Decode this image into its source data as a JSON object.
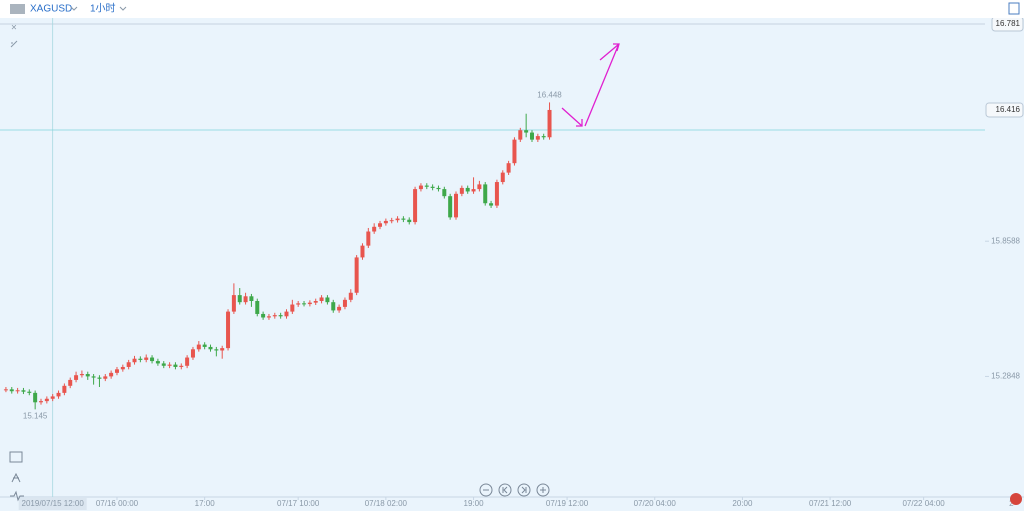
{
  "toolbar": {
    "symbol": "XAGUSD",
    "interval": "1小时"
  },
  "chart_data": {
    "type": "candlestick",
    "up_color": "#e8554e",
    "down_color": "#3ea84a",
    "open": [
      15.228,
      15.23,
      15.222,
      15.226,
      15.22,
      15.215,
      15.175,
      15.18,
      15.19,
      15.2,
      15.215,
      15.245,
      15.27,
      15.29,
      15.295,
      15.285,
      15.28,
      15.275,
      15.285,
      15.3,
      15.315,
      15.325,
      15.345,
      15.36,
      15.355,
      15.365,
      15.35,
      15.34,
      15.33,
      15.335,
      15.325,
      15.33,
      15.365,
      15.4,
      15.42,
      15.41,
      15.4,
      15.395,
      15.405,
      15.56,
      15.63,
      15.6,
      15.625,
      15.605,
      15.55,
      15.535,
      15.54,
      15.545,
      15.54,
      15.56,
      15.59,
      15.595,
      15.592,
      15.598,
      15.605,
      15.62,
      15.6,
      15.565,
      15.58,
      15.61,
      15.64,
      15.79,
      15.84,
      15.9,
      15.92,
      15.935,
      15.945,
      15.948,
      15.955,
      15.95,
      15.94,
      16.08,
      16.095,
      16.09,
      16.085,
      16.08,
      16.05,
      15.96,
      16.06,
      16.085,
      16.07,
      16.08,
      16.1,
      16.02,
      16.01,
      16.11,
      16.15,
      16.19,
      16.29,
      16.33,
      16.32,
      16.29,
      16.305,
      16.3
    ],
    "high": [
      15.24,
      15.24,
      15.236,
      15.236,
      15.23,
      15.225,
      15.19,
      15.2,
      15.21,
      15.225,
      15.255,
      15.28,
      15.305,
      15.31,
      15.305,
      15.295,
      15.29,
      15.295,
      15.31,
      15.325,
      15.335,
      15.355,
      15.372,
      15.37,
      15.378,
      15.375,
      15.36,
      15.35,
      15.345,
      15.345,
      15.34,
      15.375,
      15.41,
      15.435,
      15.43,
      15.42,
      15.41,
      15.415,
      15.57,
      15.68,
      15.66,
      15.64,
      15.635,
      15.615,
      15.56,
      15.55,
      15.555,
      15.555,
      15.57,
      15.61,
      15.605,
      15.605,
      15.608,
      15.615,
      15.63,
      15.63,
      15.61,
      15.59,
      15.62,
      15.655,
      15.8,
      15.85,
      15.915,
      15.935,
      15.945,
      15.955,
      15.958,
      15.965,
      15.965,
      15.96,
      16.09,
      16.105,
      16.105,
      16.1,
      16.095,
      16.09,
      16.06,
      16.07,
      16.095,
      16.095,
      16.13,
      16.115,
      16.11,
      16.03,
      16.12,
      16.16,
      16.2,
      16.3,
      16.34,
      16.4,
      16.33,
      16.315,
      16.315,
      16.448
    ],
    "low": [
      15.218,
      15.212,
      15.212,
      15.21,
      15.205,
      15.145,
      15.165,
      15.17,
      15.18,
      15.19,
      15.205,
      15.235,
      15.26,
      15.28,
      15.27,
      15.25,
      15.24,
      15.265,
      15.275,
      15.29,
      15.305,
      15.315,
      15.335,
      15.345,
      15.345,
      15.34,
      15.33,
      15.32,
      15.32,
      15.315,
      15.315,
      15.32,
      15.355,
      15.39,
      15.4,
      15.39,
      15.37,
      15.36,
      15.395,
      15.55,
      15.59,
      15.59,
      15.58,
      15.54,
      15.525,
      15.525,
      15.53,
      15.53,
      15.53,
      15.55,
      15.58,
      15.582,
      15.582,
      15.588,
      15.595,
      15.59,
      15.555,
      15.555,
      15.57,
      15.6,
      15.63,
      15.78,
      15.83,
      15.89,
      15.91,
      15.925,
      15.935,
      15.938,
      15.94,
      15.93,
      15.93,
      16.07,
      16.08,
      16.075,
      16.07,
      16.04,
      15.95,
      15.95,
      16.05,
      16.06,
      16.06,
      16.07,
      16.01,
      16.0,
      16.0,
      16.1,
      16.14,
      16.18,
      16.28,
      16.3,
      16.28,
      16.28,
      16.29,
      16.29
    ],
    "close": [
      15.23,
      15.222,
      15.226,
      15.22,
      15.215,
      15.175,
      15.18,
      15.19,
      15.2,
      15.215,
      15.245,
      15.27,
      15.29,
      15.295,
      15.285,
      15.28,
      15.275,
      15.285,
      15.3,
      15.315,
      15.325,
      15.345,
      15.36,
      15.355,
      15.365,
      15.35,
      15.34,
      15.33,
      15.335,
      15.325,
      15.33,
      15.365,
      15.4,
      15.42,
      15.41,
      15.4,
      15.395,
      15.405,
      15.56,
      15.63,
      15.6,
      15.625,
      15.605,
      15.55,
      15.535,
      15.54,
      15.545,
      15.54,
      15.56,
      15.59,
      15.595,
      15.592,
      15.598,
      15.605,
      15.62,
      15.6,
      15.565,
      15.58,
      15.61,
      15.64,
      15.79,
      15.84,
      15.9,
      15.92,
      15.935,
      15.945,
      15.948,
      15.955,
      15.95,
      15.94,
      16.08,
      16.095,
      16.09,
      16.085,
      16.08,
      16.05,
      15.96,
      16.06,
      16.085,
      16.07,
      16.08,
      16.1,
      16.02,
      16.01,
      16.11,
      16.15,
      16.19,
      16.29,
      16.33,
      16.32,
      16.29,
      16.305,
      16.3,
      16.416
    ],
    "ylim": [
      14.773,
      16.87
    ],
    "yticks": [
      15.2848,
      15.8588
    ],
    "price_line": 16.781,
    "last_price": 16.416,
    "xlim": [
      -0.5,
      167.5
    ],
    "xticks": [
      {
        "value": 19,
        "label": "07/16 00:00"
      },
      {
        "value": 34,
        "label": "17:00"
      },
      {
        "value": 50,
        "label": "07/17 10:00"
      },
      {
        "value": 65,
        "label": "07/18 02:00"
      },
      {
        "value": 80,
        "label": "19:00"
      },
      {
        "value": 96,
        "label": "07/19 12:00"
      },
      {
        "value": 111,
        "label": "07/20 04:00"
      },
      {
        "value": 126,
        "label": "20:00"
      },
      {
        "value": 141,
        "label": "07/21 12:00"
      },
      {
        "value": 157,
        "label": "07/22 04:00"
      },
      {
        "value": 172,
        "label": "2"
      }
    ],
    "crosshair": {
      "value": 8,
      "label": "2019/07/15 12:00"
    }
  }
}
